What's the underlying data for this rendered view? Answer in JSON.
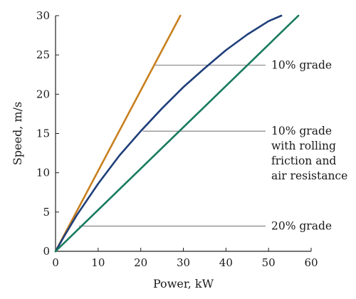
{
  "chart_data": {
    "type": "line",
    "title": "",
    "xlabel": "Power, kW",
    "ylabel": "Speed, m/s",
    "xlim": [
      0,
      60
    ],
    "ylim": [
      0,
      30
    ],
    "xticks": [
      0,
      10,
      20,
      30,
      40,
      50,
      60
    ],
    "yticks": [
      0,
      5,
      10,
      15,
      20,
      25,
      30
    ],
    "grid": false,
    "legend": "none",
    "series": [
      {
        "color": "#c8801e",
        "x": [
          0,
          29.3
        ],
        "y": [
          0,
          30
        ]
      },
      {
        "color": "#1f3f7a",
        "x": [
          0,
          2,
          5,
          10,
          15,
          20,
          25,
          30,
          35,
          40,
          45,
          50,
          53
        ],
        "y": [
          0,
          1.9,
          4.6,
          8.6,
          12.2,
          15.3,
          18.2,
          20.9,
          23.3,
          25.6,
          27.6,
          29.3,
          30
        ]
      },
      {
        "color": "#177a5e",
        "x": [
          0,
          57
        ],
        "y": [
          0,
          30
        ]
      }
    ],
    "annotations": [
      {
        "lines": [
          "10% grade"
        ],
        "x": 23,
        "y": 23.7
      },
      {
        "lines": [
          "10% grade",
          "with rolling",
          "friction and",
          "air resistance"
        ],
        "x": 20.5,
        "y": 15.3
      },
      {
        "lines": [
          "20% grade"
        ],
        "x": 5.5,
        "y": 3.2
      }
    ]
  }
}
